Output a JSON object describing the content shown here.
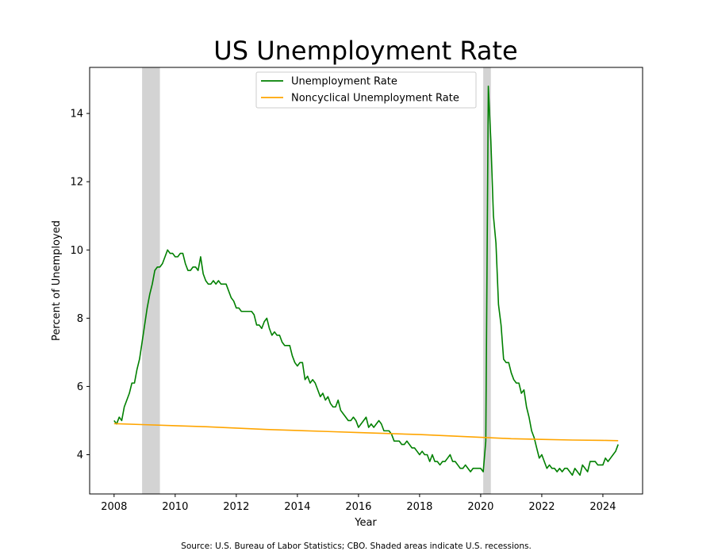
{
  "chart_data": {
    "type": "line",
    "title": "US Unemployment Rate",
    "xlabel": "Year",
    "ylabel": "Percent of Unemployed",
    "xlim": [
      2007.2,
      2025.3
    ],
    "ylim": [
      2.85,
      15.35
    ],
    "xticks": [
      2008,
      2010,
      2012,
      2014,
      2016,
      2018,
      2020,
      2022,
      2024
    ],
    "yticks": [
      4,
      6,
      8,
      10,
      12,
      14
    ],
    "grid": false,
    "legend": "top-center",
    "recessions": [
      {
        "start": 2008.917,
        "end": 2009.5
      },
      {
        "start": 2020.083,
        "end": 2020.333
      }
    ],
    "series": [
      {
        "name": "Unemployment Rate",
        "color": "#008000",
        "points": [
          [
            2008.0,
            5.0
          ],
          [
            2008.083,
            4.9
          ],
          [
            2008.167,
            5.1
          ],
          [
            2008.25,
            5.0
          ],
          [
            2008.333,
            5.4
          ],
          [
            2008.417,
            5.6
          ],
          [
            2008.5,
            5.8
          ],
          [
            2008.583,
            6.1
          ],
          [
            2008.667,
            6.1
          ],
          [
            2008.75,
            6.5
          ],
          [
            2008.833,
            6.8
          ],
          [
            2008.917,
            7.3
          ],
          [
            2009.0,
            7.8
          ],
          [
            2009.083,
            8.3
          ],
          [
            2009.167,
            8.7
          ],
          [
            2009.25,
            9.0
          ],
          [
            2009.333,
            9.4
          ],
          [
            2009.417,
            9.5
          ],
          [
            2009.5,
            9.5
          ],
          [
            2009.583,
            9.6
          ],
          [
            2009.667,
            9.8
          ],
          [
            2009.75,
            10.0
          ],
          [
            2009.833,
            9.9
          ],
          [
            2009.917,
            9.9
          ],
          [
            2010.0,
            9.8
          ],
          [
            2010.083,
            9.8
          ],
          [
            2010.167,
            9.9
          ],
          [
            2010.25,
            9.9
          ],
          [
            2010.333,
            9.6
          ],
          [
            2010.417,
            9.4
          ],
          [
            2010.5,
            9.4
          ],
          [
            2010.583,
            9.5
          ],
          [
            2010.667,
            9.5
          ],
          [
            2010.75,
            9.4
          ],
          [
            2010.833,
            9.8
          ],
          [
            2010.917,
            9.3
          ],
          [
            2011.0,
            9.1
          ],
          [
            2011.083,
            9.0
          ],
          [
            2011.167,
            9.0
          ],
          [
            2011.25,
            9.1
          ],
          [
            2011.333,
            9.0
          ],
          [
            2011.417,
            9.1
          ],
          [
            2011.5,
            9.0
          ],
          [
            2011.583,
            9.0
          ],
          [
            2011.667,
            9.0
          ],
          [
            2011.75,
            8.8
          ],
          [
            2011.833,
            8.6
          ],
          [
            2011.917,
            8.5
          ],
          [
            2012.0,
            8.3
          ],
          [
            2012.083,
            8.3
          ],
          [
            2012.167,
            8.2
          ],
          [
            2012.25,
            8.2
          ],
          [
            2012.333,
            8.2
          ],
          [
            2012.417,
            8.2
          ],
          [
            2012.5,
            8.2
          ],
          [
            2012.583,
            8.1
          ],
          [
            2012.667,
            7.8
          ],
          [
            2012.75,
            7.8
          ],
          [
            2012.833,
            7.7
          ],
          [
            2012.917,
            7.9
          ],
          [
            2013.0,
            8.0
          ],
          [
            2013.083,
            7.7
          ],
          [
            2013.167,
            7.5
          ],
          [
            2013.25,
            7.6
          ],
          [
            2013.333,
            7.5
          ],
          [
            2013.417,
            7.5
          ],
          [
            2013.5,
            7.3
          ],
          [
            2013.583,
            7.2
          ],
          [
            2013.667,
            7.2
          ],
          [
            2013.75,
            7.2
          ],
          [
            2013.833,
            6.9
          ],
          [
            2013.917,
            6.7
          ],
          [
            2014.0,
            6.6
          ],
          [
            2014.083,
            6.7
          ],
          [
            2014.167,
            6.7
          ],
          [
            2014.25,
            6.2
          ],
          [
            2014.333,
            6.3
          ],
          [
            2014.417,
            6.1
          ],
          [
            2014.5,
            6.2
          ],
          [
            2014.583,
            6.1
          ],
          [
            2014.667,
            5.9
          ],
          [
            2014.75,
            5.7
          ],
          [
            2014.833,
            5.8
          ],
          [
            2014.917,
            5.6
          ],
          [
            2015.0,
            5.7
          ],
          [
            2015.083,
            5.5
          ],
          [
            2015.167,
            5.4
          ],
          [
            2015.25,
            5.4
          ],
          [
            2015.333,
            5.6
          ],
          [
            2015.417,
            5.3
          ],
          [
            2015.5,
            5.2
          ],
          [
            2015.583,
            5.1
          ],
          [
            2015.667,
            5.0
          ],
          [
            2015.75,
            5.0
          ],
          [
            2015.833,
            5.1
          ],
          [
            2015.917,
            5.0
          ],
          [
            2016.0,
            4.8
          ],
          [
            2016.083,
            4.9
          ],
          [
            2016.167,
            5.0
          ],
          [
            2016.25,
            5.1
          ],
          [
            2016.333,
            4.8
          ],
          [
            2016.417,
            4.9
          ],
          [
            2016.5,
            4.8
          ],
          [
            2016.583,
            4.9
          ],
          [
            2016.667,
            5.0
          ],
          [
            2016.75,
            4.9
          ],
          [
            2016.833,
            4.7
          ],
          [
            2016.917,
            4.7
          ],
          [
            2017.0,
            4.7
          ],
          [
            2017.083,
            4.6
          ],
          [
            2017.167,
            4.4
          ],
          [
            2017.25,
            4.4
          ],
          [
            2017.333,
            4.4
          ],
          [
            2017.417,
            4.3
          ],
          [
            2017.5,
            4.3
          ],
          [
            2017.583,
            4.4
          ],
          [
            2017.667,
            4.3
          ],
          [
            2017.75,
            4.2
          ],
          [
            2017.833,
            4.2
          ],
          [
            2017.917,
            4.1
          ],
          [
            2018.0,
            4.0
          ],
          [
            2018.083,
            4.1
          ],
          [
            2018.167,
            4.0
          ],
          [
            2018.25,
            4.0
          ],
          [
            2018.333,
            3.8
          ],
          [
            2018.417,
            4.0
          ],
          [
            2018.5,
            3.8
          ],
          [
            2018.583,
            3.8
          ],
          [
            2018.667,
            3.7
          ],
          [
            2018.75,
            3.8
          ],
          [
            2018.833,
            3.8
          ],
          [
            2018.917,
            3.9
          ],
          [
            2019.0,
            4.0
          ],
          [
            2019.083,
            3.8
          ],
          [
            2019.167,
            3.8
          ],
          [
            2019.25,
            3.7
          ],
          [
            2019.333,
            3.6
          ],
          [
            2019.417,
            3.6
          ],
          [
            2019.5,
            3.7
          ],
          [
            2019.583,
            3.6
          ],
          [
            2019.667,
            3.5
          ],
          [
            2019.75,
            3.6
          ],
          [
            2019.833,
            3.6
          ],
          [
            2019.917,
            3.6
          ],
          [
            2020.0,
            3.6
          ],
          [
            2020.083,
            3.5
          ],
          [
            2020.167,
            4.4
          ],
          [
            2020.25,
            14.8
          ],
          [
            2020.333,
            13.2
          ],
          [
            2020.417,
            11.0
          ],
          [
            2020.5,
            10.2
          ],
          [
            2020.583,
            8.4
          ],
          [
            2020.667,
            7.8
          ],
          [
            2020.75,
            6.8
          ],
          [
            2020.833,
            6.7
          ],
          [
            2020.917,
            6.7
          ],
          [
            2021.0,
            6.4
          ],
          [
            2021.083,
            6.2
          ],
          [
            2021.167,
            6.1
          ],
          [
            2021.25,
            6.1
          ],
          [
            2021.333,
            5.8
          ],
          [
            2021.417,
            5.9
          ],
          [
            2021.5,
            5.4
          ],
          [
            2021.583,
            5.1
          ],
          [
            2021.667,
            4.7
          ],
          [
            2021.75,
            4.5
          ],
          [
            2021.833,
            4.2
          ],
          [
            2021.917,
            3.9
          ],
          [
            2022.0,
            4.0
          ],
          [
            2022.083,
            3.8
          ],
          [
            2022.167,
            3.6
          ],
          [
            2022.25,
            3.7
          ],
          [
            2022.333,
            3.6
          ],
          [
            2022.417,
            3.6
          ],
          [
            2022.5,
            3.5
          ],
          [
            2022.583,
            3.6
          ],
          [
            2022.667,
            3.5
          ],
          [
            2022.75,
            3.6
          ],
          [
            2022.833,
            3.6
          ],
          [
            2022.917,
            3.5
          ],
          [
            2023.0,
            3.4
          ],
          [
            2023.083,
            3.6
          ],
          [
            2023.167,
            3.5
          ],
          [
            2023.25,
            3.4
          ],
          [
            2023.333,
            3.7
          ],
          [
            2023.417,
            3.6
          ],
          [
            2023.5,
            3.5
          ],
          [
            2023.583,
            3.8
          ],
          [
            2023.667,
            3.8
          ],
          [
            2023.75,
            3.8
          ],
          [
            2023.833,
            3.7
          ],
          [
            2023.917,
            3.7
          ],
          [
            2024.0,
            3.7
          ],
          [
            2024.083,
            3.9
          ],
          [
            2024.167,
            3.8
          ],
          [
            2024.25,
            3.9
          ],
          [
            2024.333,
            4.0
          ],
          [
            2024.417,
            4.1
          ],
          [
            2024.5,
            4.3
          ]
        ]
      },
      {
        "name": "Noncyclical Unemployment Rate",
        "color": "#FFA500",
        "points": [
          [
            2008.0,
            4.91
          ],
          [
            2009.0,
            4.88
          ],
          [
            2010.0,
            4.85
          ],
          [
            2011.0,
            4.82
          ],
          [
            2012.0,
            4.78
          ],
          [
            2013.0,
            4.74
          ],
          [
            2014.0,
            4.71
          ],
          [
            2015.0,
            4.68
          ],
          [
            2016.0,
            4.65
          ],
          [
            2017.0,
            4.62
          ],
          [
            2018.0,
            4.59
          ],
          [
            2019.0,
            4.55
          ],
          [
            2020.0,
            4.51
          ],
          [
            2021.0,
            4.47
          ],
          [
            2022.0,
            4.45
          ],
          [
            2023.0,
            4.43
          ],
          [
            2024.0,
            4.42
          ],
          [
            2024.5,
            4.41
          ]
        ]
      }
    ],
    "note": "Source: U.S. Bureau of Labor Statistics; CBO. Shaded areas indicate U.S. recessions."
  }
}
